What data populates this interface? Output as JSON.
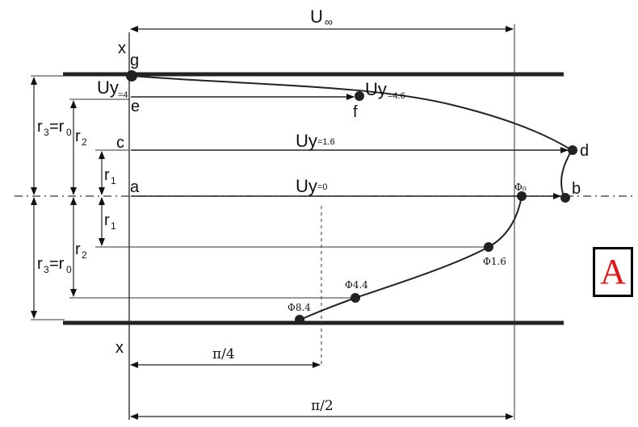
{
  "diagram": {
    "labels": {
      "u_inf": "U",
      "u_inf_sub": "∞",
      "x_top": "x",
      "x_bottom": "x",
      "g": "g",
      "e": "e",
      "f": "f",
      "c": "c",
      "d": "d",
      "a": "a",
      "b": "b",
      "uy_top": "Uy",
      "uy_top_sub": "=4",
      "uy_f": "Uy",
      "uy_f_sub": "=4.6",
      "uy_c": "Uy",
      "uy_c_sub": "=1.6",
      "uy_a": "Uy",
      "uy_a_sub": "=0",
      "r3_top": "r",
      "r3_top_sub": "3",
      "r3_top_eq": "=r",
      "r3_top_sub0": "0",
      "r2_top": "r",
      "r2_top_sub": "2",
      "r1_top": "r",
      "r1_top_sub": "1",
      "r1_bot": "r",
      "r1_bot_sub": "1",
      "r2_bot": "r",
      "r2_bot_sub": "2",
      "r3_bot": "r",
      "r3_bot_sub": "3",
      "r3_bot_eq": "=r",
      "r3_bot_sub0": "0",
      "phi0": "Φ₀",
      "phi16": "Φ1.6",
      "phi44": "Φ4.4",
      "phi84": "Φ8.4",
      "pi4": "π/4",
      "pi2": "π/2"
    },
    "badge": "A",
    "colors": {
      "ink": "#111111",
      "badge_text": "#e01818"
    }
  }
}
